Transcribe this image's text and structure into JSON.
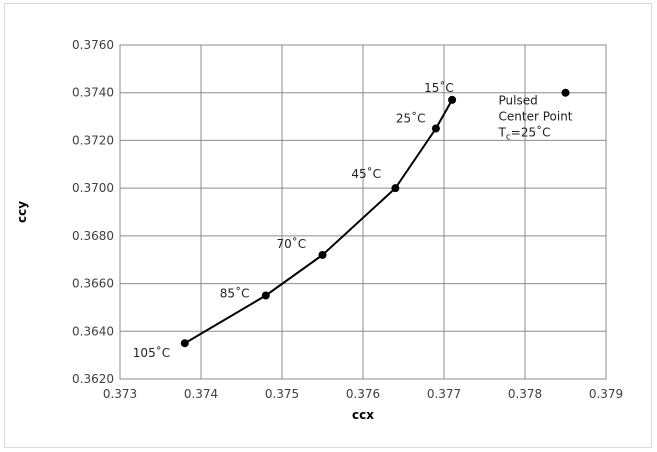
{
  "chart_data": {
    "type": "line",
    "title": "",
    "xlabel": "ccx",
    "ylabel": "ccy",
    "xlim": [
      0.373,
      0.379
    ],
    "ylim": [
      0.362,
      0.376
    ],
    "x_ticks": [
      "0.373",
      "0.374",
      "0.375",
      "0.376",
      "0.377",
      "0.378",
      "0.379"
    ],
    "y_ticks": [
      "0.3620",
      "0.3640",
      "0.3660",
      "0.3680",
      "0.3700",
      "0.3720",
      "0.3740",
      "0.3760"
    ],
    "grid": true,
    "series": [
      {
        "color": "#000000",
        "points": [
          {
            "x": 0.3738,
            "y": 0.3635,
            "label": "105˚C"
          },
          {
            "x": 0.3748,
            "y": 0.3655,
            "label": "85˚C"
          },
          {
            "x": 0.3755,
            "y": 0.3672,
            "label": "70˚C"
          },
          {
            "x": 0.3764,
            "y": 0.37,
            "label": "45˚C"
          },
          {
            "x": 0.3769,
            "y": 0.3725,
            "label": "25˚C"
          },
          {
            "x": 0.3771,
            "y": 0.3737,
            "label": "15˚C"
          }
        ]
      }
    ],
    "standalone_point": {
      "x": 0.3785,
      "y": 0.374,
      "label_lines": [
        "Pulsed",
        "Center Point"
      ],
      "label_tc_prefix": "T",
      "label_tc_sub": "c",
      "label_tc_suffix": "=25˚C"
    }
  }
}
